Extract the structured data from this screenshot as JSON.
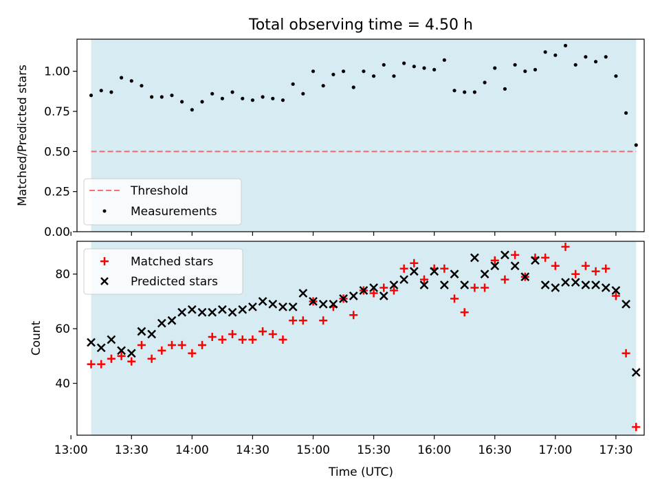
{
  "title": "Total observing time = 4.50 h",
  "colors": {
    "span": "#add8e6",
    "threshold": "#ff0000",
    "measurements": "#000000",
    "matched": "#ff0000",
    "predicted": "#000000"
  },
  "chart_data": [
    {
      "type": "scatter",
      "panel": "top",
      "ylabel": "Matched/Predicted stars",
      "ylim": [
        0,
        1.2
      ],
      "yticks": [
        "0.00",
        "0.25",
        "0.50",
        "0.75",
        "1.00"
      ],
      "ytick_values": [
        0,
        0.25,
        0.5,
        0.75,
        1.0
      ],
      "observing_span": [
        "13:10",
        "17:40"
      ],
      "legend_position": "lower-left",
      "threshold": {
        "name": "Threshold",
        "value": 0.5,
        "style": "dashed"
      },
      "series": [
        {
          "name": "Measurements",
          "x": [
            "13:10",
            "13:15",
            "13:20",
            "13:25",
            "13:30",
            "13:35",
            "13:40",
            "13:45",
            "13:50",
            "13:55",
            "14:00",
            "14:05",
            "14:10",
            "14:15",
            "14:20",
            "14:25",
            "14:30",
            "14:35",
            "14:40",
            "14:45",
            "14:50",
            "14:55",
            "15:00",
            "15:05",
            "15:10",
            "15:15",
            "15:20",
            "15:25",
            "15:30",
            "15:35",
            "15:40",
            "15:45",
            "15:50",
            "15:55",
            "16:00",
            "16:05",
            "16:10",
            "16:15",
            "16:20",
            "16:25",
            "16:30",
            "16:35",
            "16:40",
            "16:45",
            "16:50",
            "16:55",
            "17:00",
            "17:05",
            "17:10",
            "17:15",
            "17:20",
            "17:25",
            "17:30",
            "17:35",
            "17:40"
          ],
          "values": [
            0.85,
            0.88,
            0.87,
            0.96,
            0.94,
            0.91,
            0.84,
            0.84,
            0.85,
            0.81,
            0.76,
            0.81,
            0.86,
            0.83,
            0.87,
            0.83,
            0.82,
            0.84,
            0.83,
            0.82,
            0.92,
            0.86,
            1.0,
            0.91,
            0.98,
            1.0,
            0.9,
            1.0,
            0.97,
            1.04,
            0.97,
            1.05,
            1.03,
            1.02,
            1.01,
            1.07,
            0.88,
            0.87,
            0.87,
            0.93,
            1.02,
            0.89,
            1.04,
            1.0,
            1.01,
            1.12,
            1.1,
            1.16,
            1.04,
            1.09,
            1.06,
            1.09,
            0.97,
            0.74,
            0.54
          ]
        }
      ]
    },
    {
      "type": "scatter",
      "panel": "bottom",
      "xlabel": "Time (UTC)",
      "ylabel": "Count",
      "ylim": [
        21,
        92
      ],
      "yticks": [
        "40",
        "60",
        "80"
      ],
      "ytick_values": [
        40,
        60,
        80
      ],
      "xlim": [
        "13:03",
        "17:44"
      ],
      "xticks": [
        "13:00",
        "13:30",
        "14:00",
        "14:30",
        "15:00",
        "15:30",
        "16:00",
        "16:30",
        "17:00",
        "17:30"
      ],
      "observing_span": [
        "13:10",
        "17:40"
      ],
      "legend_position": "upper-left",
      "series": [
        {
          "name": "Matched stars",
          "marker": "+",
          "x": [
            "13:10",
            "13:15",
            "13:20",
            "13:25",
            "13:30",
            "13:35",
            "13:40",
            "13:45",
            "13:50",
            "13:55",
            "14:00",
            "14:05",
            "14:10",
            "14:15",
            "14:20",
            "14:25",
            "14:30",
            "14:35",
            "14:40",
            "14:45",
            "14:50",
            "14:55",
            "15:00",
            "15:05",
            "15:10",
            "15:15",
            "15:20",
            "15:25",
            "15:30",
            "15:35",
            "15:40",
            "15:45",
            "15:50",
            "15:55",
            "16:00",
            "16:05",
            "16:10",
            "16:15",
            "16:20",
            "16:25",
            "16:30",
            "16:35",
            "16:40",
            "16:45",
            "16:50",
            "16:55",
            "17:00",
            "17:05",
            "17:10",
            "17:15",
            "17:20",
            "17:25",
            "17:30",
            "17:35",
            "17:40"
          ],
          "values": [
            47,
            47,
            49,
            50,
            48,
            54,
            49,
            52,
            54,
            54,
            51,
            54,
            57,
            56,
            58,
            56,
            56,
            59,
            58,
            56,
            63,
            63,
            70,
            63,
            68,
            71,
            65,
            74,
            73,
            75,
            74,
            82,
            84,
            78,
            82,
            82,
            71,
            66,
            75,
            75,
            85,
            78,
            87,
            79,
            86,
            86,
            83,
            90,
            80,
            83,
            81,
            82,
            72,
            51,
            24
          ]
        },
        {
          "name": "Predicted stars",
          "marker": "x",
          "x": [
            "13:10",
            "13:15",
            "13:20",
            "13:25",
            "13:30",
            "13:35",
            "13:40",
            "13:45",
            "13:50",
            "13:55",
            "14:00",
            "14:05",
            "14:10",
            "14:15",
            "14:20",
            "14:25",
            "14:30",
            "14:35",
            "14:40",
            "14:45",
            "14:50",
            "14:55",
            "15:00",
            "15:05",
            "15:10",
            "15:15",
            "15:20",
            "15:25",
            "15:30",
            "15:35",
            "15:40",
            "15:45",
            "15:50",
            "15:55",
            "16:00",
            "16:05",
            "16:10",
            "16:15",
            "16:20",
            "16:25",
            "16:30",
            "16:35",
            "16:40",
            "16:45",
            "16:50",
            "16:55",
            "17:00",
            "17:05",
            "17:10",
            "17:15",
            "17:20",
            "17:25",
            "17:30",
            "17:35",
            "17:40"
          ],
          "values": [
            55,
            53,
            56,
            52,
            51,
            59,
            58,
            62,
            63,
            66,
            67,
            66,
            66,
            67,
            66,
            67,
            68,
            70,
            69,
            68,
            68,
            73,
            70,
            69,
            69,
            71,
            72,
            74,
            75,
            72,
            76,
            78,
            81,
            76,
            81,
            76,
            80,
            76,
            86,
            80,
            83,
            87,
            83,
            79,
            85,
            76,
            75,
            77,
            77,
            76,
            76,
            75,
            74,
            69,
            44
          ]
        }
      ]
    }
  ]
}
